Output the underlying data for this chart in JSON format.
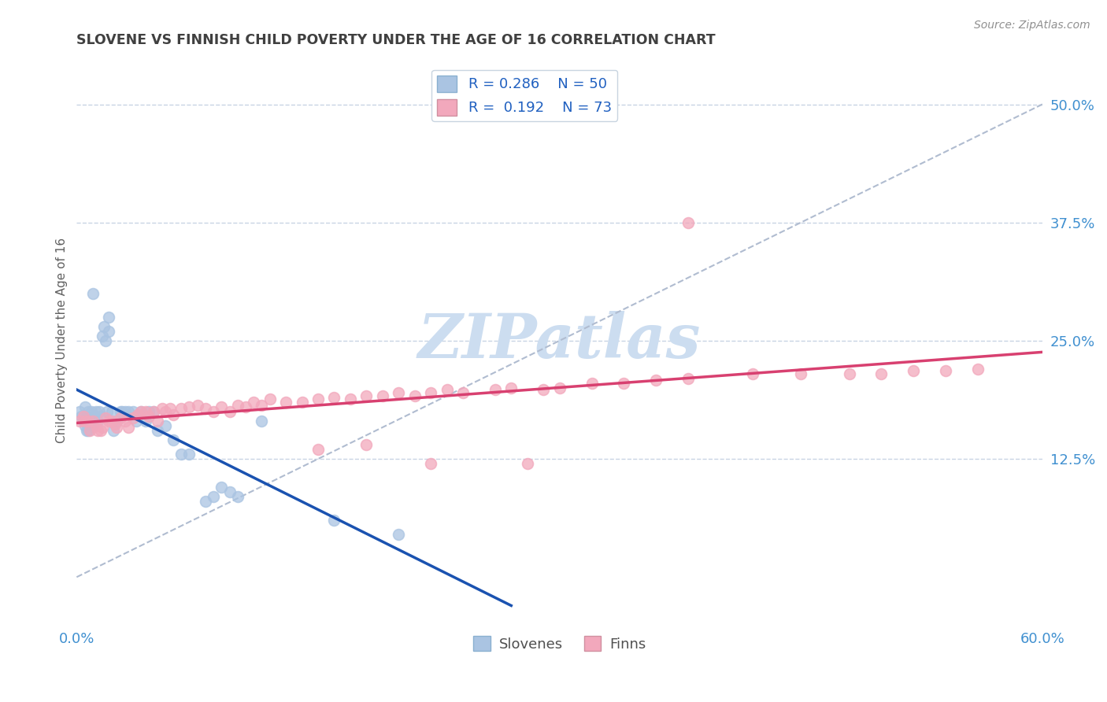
{
  "title": "SLOVENE VS FINNISH CHILD POVERTY UNDER THE AGE OF 16 CORRELATION CHART",
  "source": "Source: ZipAtlas.com",
  "ylabel": "Child Poverty Under the Age of 16",
  "xlim": [
    0.0,
    0.6
  ],
  "ylim": [
    -0.05,
    0.55
  ],
  "ytick_positions": [
    0.125,
    0.25,
    0.375,
    0.5
  ],
  "ytick_labels": [
    "12.5%",
    "25.0%",
    "37.5%",
    "50.0%"
  ],
  "legend_R_slovenes": "0.286",
  "legend_N_slovenes": "50",
  "legend_R_finns": "0.192",
  "legend_N_finns": "73",
  "color_slovenes": "#aac4e2",
  "color_finns": "#f2a8bc",
  "line_color_slovenes": "#1a52b0",
  "line_color_finns": "#d84070",
  "watermark_color": "#ccddf0",
  "background_color": "#ffffff",
  "grid_color": "#c8d4e4",
  "title_color": "#404040",
  "axis_label_color": "#606060",
  "tick_color": "#4090d0",
  "scatter_size": 100,
  "scatter_alpha": 0.75,
  "slovene_x": [
    0.002,
    0.003,
    0.004,
    0.005,
    0.005,
    0.006,
    0.006,
    0.007,
    0.007,
    0.008,
    0.009,
    0.01,
    0.01,
    0.011,
    0.012,
    0.013,
    0.014,
    0.015,
    0.016,
    0.017,
    0.018,
    0.019,
    0.02,
    0.02,
    0.022,
    0.023,
    0.025,
    0.027,
    0.028,
    0.03,
    0.032,
    0.035,
    0.037,
    0.04,
    0.043,
    0.045,
    0.048,
    0.05,
    0.055,
    0.06,
    0.065,
    0.07,
    0.08,
    0.085,
    0.09,
    0.095,
    0.1,
    0.115,
    0.16,
    0.2
  ],
  "slovene_y": [
    0.175,
    0.17,
    0.165,
    0.18,
    0.16,
    0.155,
    0.17,
    0.155,
    0.175,
    0.165,
    0.175,
    0.16,
    0.3,
    0.17,
    0.175,
    0.165,
    0.175,
    0.17,
    0.255,
    0.265,
    0.25,
    0.175,
    0.275,
    0.26,
    0.175,
    0.155,
    0.165,
    0.175,
    0.175,
    0.175,
    0.175,
    0.175,
    0.165,
    0.175,
    0.165,
    0.175,
    0.175,
    0.155,
    0.16,
    0.145,
    0.13,
    0.13,
    0.08,
    0.085,
    0.095,
    0.09,
    0.085,
    0.165,
    0.06,
    0.045
  ],
  "finn_x": [
    0.002,
    0.004,
    0.005,
    0.007,
    0.008,
    0.01,
    0.012,
    0.013,
    0.015,
    0.016,
    0.018,
    0.02,
    0.022,
    0.024,
    0.025,
    0.027,
    0.03,
    0.032,
    0.035,
    0.038,
    0.04,
    0.043,
    0.045,
    0.048,
    0.05,
    0.053,
    0.055,
    0.058,
    0.06,
    0.065,
    0.07,
    0.075,
    0.08,
    0.085,
    0.09,
    0.095,
    0.1,
    0.105,
    0.11,
    0.115,
    0.12,
    0.13,
    0.14,
    0.15,
    0.16,
    0.17,
    0.18,
    0.19,
    0.2,
    0.21,
    0.22,
    0.23,
    0.24,
    0.26,
    0.27,
    0.29,
    0.3,
    0.32,
    0.34,
    0.36,
    0.38,
    0.42,
    0.45,
    0.48,
    0.52,
    0.54,
    0.56,
    0.15,
    0.18,
    0.22,
    0.28,
    0.38,
    0.5
  ],
  "finn_y": [
    0.165,
    0.17,
    0.165,
    0.165,
    0.155,
    0.165,
    0.16,
    0.155,
    0.155,
    0.158,
    0.168,
    0.165,
    0.165,
    0.162,
    0.158,
    0.168,
    0.165,
    0.158,
    0.168,
    0.172,
    0.175,
    0.175,
    0.17,
    0.175,
    0.165,
    0.178,
    0.175,
    0.178,
    0.172,
    0.178,
    0.18,
    0.182,
    0.178,
    0.175,
    0.18,
    0.175,
    0.182,
    0.18,
    0.185,
    0.182,
    0.188,
    0.185,
    0.185,
    0.188,
    0.19,
    0.188,
    0.192,
    0.192,
    0.195,
    0.192,
    0.195,
    0.198,
    0.195,
    0.198,
    0.2,
    0.198,
    0.2,
    0.205,
    0.205,
    0.208,
    0.21,
    0.215,
    0.215,
    0.215,
    0.218,
    0.218,
    0.22,
    0.135,
    0.14,
    0.12,
    0.12,
    0.375,
    0.215
  ]
}
